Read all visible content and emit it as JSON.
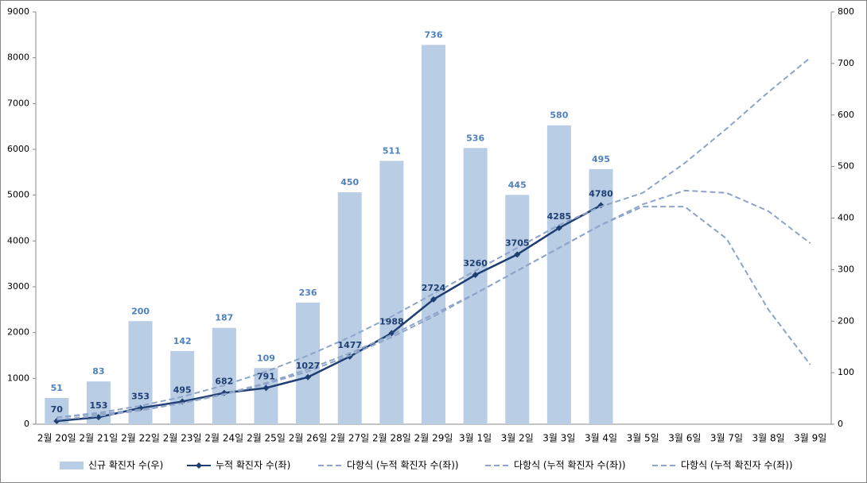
{
  "chart_data": {
    "type": "bar",
    "categories": [
      "2월 20일",
      "2월 21일",
      "2월 22일",
      "2월 23일",
      "2월 24일",
      "2월 25일",
      "2월 26일",
      "2월 27일",
      "2월 28일",
      "2월 29일",
      "3월 1일",
      "3월 2일",
      "3월 3일",
      "3월 4일",
      "3월 5일",
      "3월 6일",
      "3월 7일",
      "3월 8일",
      "3월 9일"
    ],
    "ylim": [
      0,
      9000
    ],
    "yticks": [
      0,
      1000,
      2000,
      3000,
      4000,
      5000,
      6000,
      7000,
      8000,
      9000
    ],
    "y2lim": [
      0,
      800
    ],
    "y2ticks": [
      0,
      100,
      200,
      300,
      400,
      500,
      600,
      700,
      800
    ],
    "legend": "bottom",
    "series": [
      {
        "name": "신규 확진자 수(우)",
        "type": "bar",
        "axis": "y2",
        "color": "#b9cde5",
        "label_color": "#4f81bd",
        "values": [
          51,
          83,
          200,
          142,
          187,
          109,
          236,
          450,
          511,
          736,
          536,
          445,
          580,
          495,
          null,
          null,
          null,
          null,
          null
        ]
      },
      {
        "name": "누적 확진자 수(좌)",
        "type": "line",
        "color": "#1f3f73",
        "label_color": "#1f3f73",
        "values": [
          70,
          153,
          353,
          495,
          682,
          791,
          1027,
          1477,
          1988,
          2724,
          3260,
          3705,
          4285,
          4780,
          null,
          null,
          null,
          null,
          null
        ]
      },
      {
        "name": "다항식 (누적 확진자 수(좌))",
        "type": "line",
        "dashed": true,
        "color": "#8ea4c8",
        "values": [
          150,
          250,
          400,
          600,
          850,
          1150,
          1500,
          1900,
          2350,
          2850,
          3350,
          3850,
          4350,
          4750,
          5050,
          5700,
          6450,
          7250,
          8000
        ]
      },
      {
        "name": "다항식 (누적 확진자 수(좌))",
        "type": "line",
        "dashed": true,
        "color": "#8ea4c8",
        "values": [
          100,
          180,
          300,
          460,
          660,
          900,
          1200,
          1550,
          1950,
          2400,
          2850,
          3350,
          3850,
          4350,
          4800,
          5100,
          5050,
          4650,
          3950
        ]
      },
      {
        "name": "다항식 (누적 확진자 수(좌))",
        "type": "line",
        "dashed": true,
        "color": "#8ea4c8",
        "values": [
          150,
          220,
          320,
          460,
          650,
          880,
          1150,
          1500,
          1900,
          2350,
          2850,
          3350,
          3850,
          4350,
          4750,
          4750,
          4050,
          2500,
          1300
        ]
      }
    ]
  }
}
